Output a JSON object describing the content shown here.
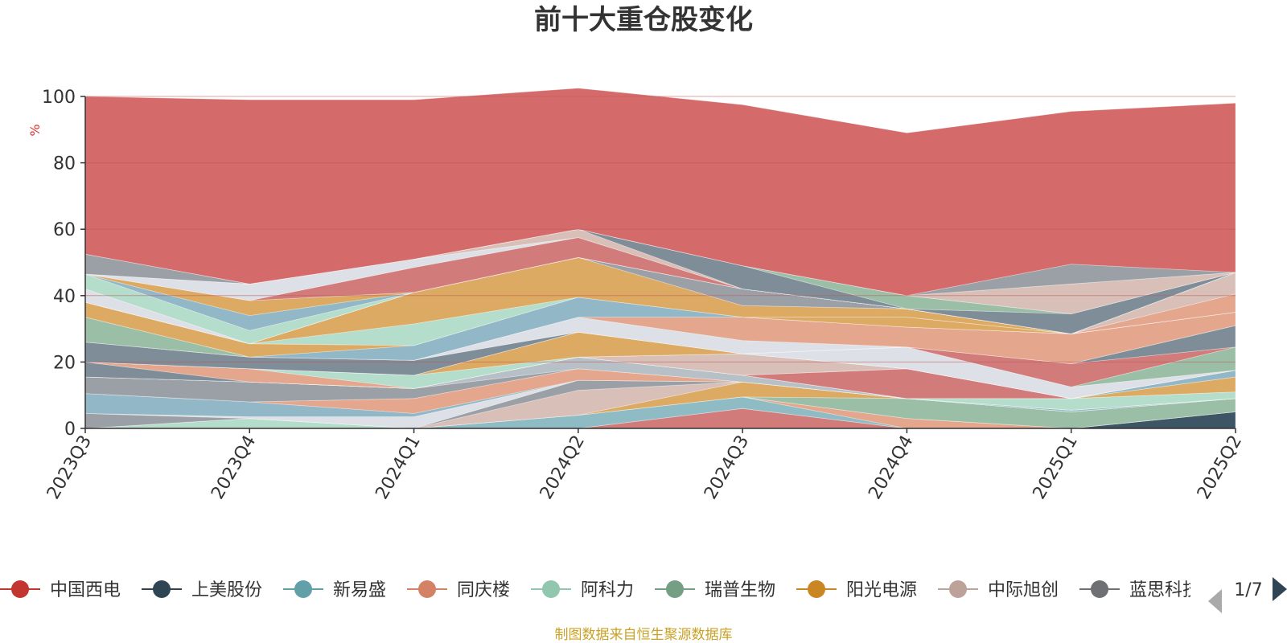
{
  "chart_data": {
    "type": "area",
    "stacked": true,
    "title": "前十大重仓股变化",
    "y_unit": "%",
    "ylim": [
      0,
      100
    ],
    "y_ticks": [
      0,
      20,
      40,
      60,
      80,
      100
    ],
    "grid": true,
    "legend_placement": "bottom",
    "categories": [
      "2023Q3",
      "2023Q4",
      "2024Q1",
      "2024Q2",
      "2024Q3",
      "2024Q4",
      "2025Q1",
      "2025Q2"
    ],
    "series": [
      {
        "name": "中国西电",
        "color": "#d27b7b",
        "values": [
          0,
          0,
          0,
          0,
          6.0,
          0,
          0,
          0
        ]
      },
      {
        "name": "上美股份",
        "color": "#3e5566",
        "values": [
          0,
          0,
          0,
          0,
          0,
          0,
          0,
          5.0
        ]
      },
      {
        "name": "新易盛",
        "color": "#8fbcc4",
        "values": [
          0,
          0,
          0,
          4.0,
          3.5,
          0,
          0,
          0
        ]
      },
      {
        "name": "同庆楼",
        "color": "#e4a68c",
        "values": [
          0,
          0,
          0,
          0,
          0,
          3.0,
          0,
          0
        ]
      },
      {
        "name": "阿科力",
        "color": "#b5ddcb",
        "values": [
          0,
          3.0,
          0,
          0,
          0,
          0,
          0,
          0
        ]
      },
      {
        "name": "瑞普生物",
        "color": "#9bbfa6",
        "values": [
          0,
          0,
          0,
          0,
          0,
          6.0,
          5.0,
          4.0
        ]
      },
      {
        "name": "阳光电源",
        "color": "#dcaa62",
        "values": [
          0,
          0,
          0,
          0,
          4.5,
          0,
          0,
          0
        ]
      },
      {
        "name": "中际旭创",
        "color": "#d8c0b8",
        "values": [
          0,
          0,
          0,
          7.5,
          0,
          0,
          0,
          0
        ]
      },
      {
        "name": "蓝思科技",
        "color": "#9ba0a6",
        "values": [
          4.5,
          0,
          0,
          3.0,
          0,
          0,
          0,
          0
        ]
      },
      {
        "name": "",
        "color": "#dde0e6",
        "values": [
          0,
          0.5,
          3.5,
          0,
          0,
          0,
          0,
          0
        ]
      },
      {
        "name": "",
        "color": "#92b7c7",
        "values": [
          6.0,
          4.5,
          1.0,
          0,
          0,
          0,
          0.5,
          0
        ]
      },
      {
        "name": "",
        "color": "#e4a68c",
        "values": [
          0,
          0,
          4.5,
          3.5,
          0,
          0,
          0,
          0
        ]
      },
      {
        "name": "",
        "color": "#9ba0a6",
        "values": [
          5.0,
          6.0,
          3.0,
          0,
          0,
          0,
          0,
          0
        ]
      },
      {
        "name": "",
        "color": "#b7c0c6",
        "values": [
          0,
          0,
          0,
          3.5,
          2.0,
          0,
          0,
          0
        ]
      },
      {
        "name": "",
        "color": "#b5ddcb",
        "values": [
          0,
          0,
          0,
          0,
          0,
          0,
          3.5,
          2.0
        ]
      },
      {
        "name": "",
        "color": "#dcaa62",
        "values": [
          0,
          0,
          0,
          0,
          0,
          0,
          0,
          4.5
        ]
      },
      {
        "name": "",
        "color": "#d27b7b",
        "values": [
          0,
          0,
          0,
          0,
          0,
          9.0,
          0,
          0
        ]
      },
      {
        "name": "",
        "color": "#92b7c7",
        "values": [
          0,
          0,
          0,
          0,
          0,
          0,
          0,
          2.0
        ]
      },
      {
        "name": "",
        "color": "#d8c0b8",
        "values": [
          0,
          0,
          0,
          0,
          6.5,
          0,
          0,
          0
        ]
      },
      {
        "name": "",
        "color": "#7f8d98",
        "values": [
          4.5,
          0,
          0,
          0,
          0,
          0,
          0,
          0
        ]
      },
      {
        "name": "",
        "color": "#e4a68c",
        "values": [
          0,
          4.0,
          0,
          0,
          0,
          0,
          0,
          0
        ]
      },
      {
        "name": "",
        "color": "#b5ddcb",
        "values": [
          0,
          0,
          4.0,
          0,
          0,
          0,
          0,
          0
        ]
      },
      {
        "name": "",
        "color": "#dcaa62",
        "values": [
          0,
          0,
          0,
          7.5,
          0,
          0,
          0,
          0
        ]
      },
      {
        "name": "",
        "color": "#dde0e6",
        "values": [
          0,
          0,
          0,
          0,
          0,
          6.5,
          3.5,
          0
        ]
      },
      {
        "name": "",
        "color": "#9bbfa6",
        "values": [
          0,
          0,
          0,
          0,
          0,
          0,
          0,
          7.0
        ]
      },
      {
        "name": "",
        "color": "#d27b7b",
        "values": [
          0,
          0,
          0,
          0,
          0,
          0,
          7.0,
          0
        ]
      },
      {
        "name": "",
        "color": "#7f8d98",
        "values": [
          6.0,
          3.5,
          4.5,
          0,
          0,
          0,
          0,
          6.5
        ]
      },
      {
        "name": "",
        "color": "#dde0e6",
        "values": [
          0,
          0,
          0,
          4.5,
          4.0,
          0,
          0,
          0
        ]
      },
      {
        "name": "",
        "color": "#e4a68c",
        "values": [
          0,
          0,
          0,
          0,
          7.0,
          6.0,
          9.0,
          4.0
        ]
      },
      {
        "name": "",
        "color": "#9bbfa6",
        "values": [
          7.5,
          0,
          0,
          0,
          0,
          0,
          0,
          0
        ]
      },
      {
        "name": "",
        "color": "#92b7c7",
        "values": [
          0,
          0,
          4.5,
          6.0,
          0,
          0,
          0,
          0
        ]
      },
      {
        "name": "",
        "color": "#dcaa62",
        "values": [
          4.5,
          4.0,
          0,
          0,
          0,
          3.0,
          0,
          0
        ]
      },
      {
        "name": "",
        "color": "#b5ddcb",
        "values": [
          0,
          0,
          6.5,
          0,
          0,
          0,
          0,
          0
        ]
      },
      {
        "name": "",
        "color": "#dcaa62",
        "values": [
          0,
          0,
          9.5,
          12.0,
          3.5,
          2.5,
          0,
          0
        ]
      },
      {
        "name": "",
        "color": "#9ba0a6",
        "values": [
          0,
          0,
          0,
          0,
          5.0,
          0,
          0,
          0
        ]
      },
      {
        "name": "",
        "color": "#e4a68c",
        "values": [
          0,
          0,
          0,
          0,
          0,
          0,
          0,
          5.5
        ]
      },
      {
        "name": "",
        "color": "#d8c0b8",
        "values": [
          0,
          0,
          0,
          0,
          0,
          0,
          0,
          6.5
        ]
      },
      {
        "name": "",
        "color": "#dde0e6",
        "values": [
          4.0,
          0,
          0,
          0,
          0,
          0,
          0,
          0
        ]
      },
      {
        "name": "",
        "color": "#b5ddcb",
        "values": [
          4.5,
          4.0,
          0,
          0,
          0,
          0,
          0,
          0
        ]
      },
      {
        "name": "",
        "color": "#92b7c7",
        "values": [
          0,
          4.5,
          0,
          0,
          0,
          0,
          0,
          0
        ]
      },
      {
        "name": "",
        "color": "#dcaa62",
        "values": [
          0,
          4.5,
          0,
          0,
          0,
          0,
          0,
          0
        ]
      },
      {
        "name": "",
        "color": "#d27b7b",
        "values": [
          0,
          0,
          7.5,
          6.0,
          0,
          0,
          0,
          0
        ]
      },
      {
        "name": "",
        "color": "#dde0e6",
        "values": [
          0,
          5.0,
          2.5,
          0,
          0,
          0,
          0,
          0
        ]
      },
      {
        "name": "",
        "color": "#d8c0b8",
        "values": [
          0,
          0,
          0,
          2.5,
          0,
          0,
          0,
          0
        ]
      },
      {
        "name": "",
        "color": "#7f8d98",
        "values": [
          0,
          0,
          0,
          0,
          7.0,
          0,
          6.0,
          0
        ]
      },
      {
        "name": "",
        "color": "#9bbfa6",
        "values": [
          0,
          0,
          0,
          0,
          0,
          4.0,
          0,
          0
        ]
      },
      {
        "name": "",
        "color": "#9ba0a6",
        "values": [
          6.0,
          0,
          0,
          0,
          0,
          0,
          0,
          0
        ]
      },
      {
        "name": "",
        "color": "#d8c0b8",
        "values": [
          0,
          0,
          0,
          0,
          0,
          0,
          9.0,
          0
        ]
      },
      {
        "name": "",
        "color": "#9ba0a6",
        "values": [
          0,
          0,
          0,
          0,
          0,
          0,
          6.0,
          0
        ]
      },
      {
        "name": "中国西电",
        "color": "#d46a6a",
        "values": [
          47.5,
          55.5,
          48.0,
          42.5,
          48.5,
          49.0,
          46.0,
          51.0
        ]
      }
    ]
  },
  "legend": {
    "items": [
      {
        "label": "中国西电",
        "color": "#c23531"
      },
      {
        "label": "上美股份",
        "color": "#2f4554"
      },
      {
        "label": "新易盛",
        "color": "#61a0a8"
      },
      {
        "label": "同庆楼",
        "color": "#d48265"
      },
      {
        "label": "阿科力",
        "color": "#91c7ae"
      },
      {
        "label": "瑞普生物",
        "color": "#749f83"
      },
      {
        "label": "阳光电源",
        "color": "#ca8622"
      },
      {
        "label": "中际旭创",
        "color": "#bda29a"
      },
      {
        "label": "蓝思科技",
        "color": "#6e7074"
      }
    ],
    "page": "1/7"
  },
  "footer": {
    "text": "制图数据来自恒生聚源数据库",
    "color": "#c9a227"
  },
  "colors": {
    "unit": "#e03030",
    "axis": "#333333",
    "grid": "#c05a5a",
    "pager_active": "#2f4554",
    "pager_inactive": "#aaaaaa"
  }
}
